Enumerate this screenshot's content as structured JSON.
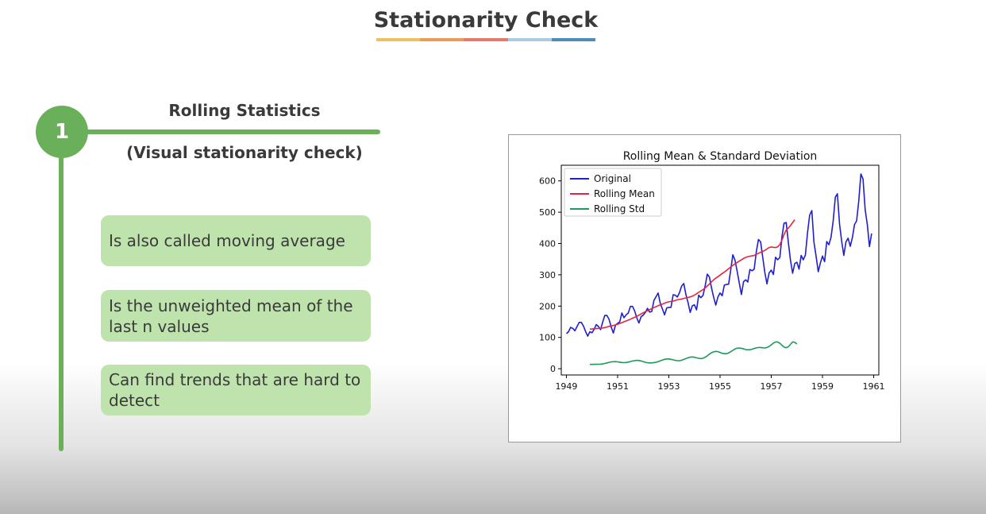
{
  "slide": {
    "title": "Stationarity Check",
    "title_bar_colors": [
      "#f0c060",
      "#ec9a58",
      "#e67a6c",
      "#a8cde0",
      "#4a8cbc"
    ]
  },
  "step": {
    "number": "1",
    "heading": "Rolling Statistics",
    "subheading": "(Visual stationarity check)",
    "accent_color": "#6ab05a"
  },
  "cards": [
    "Is also called moving average",
    "Is the unweighted mean of the last n values",
    "Can find trends that are hard to detect"
  ],
  "chart_data": {
    "type": "line",
    "title": "Rolling Mean & Standard Deviation",
    "xlim": [
      1948.8,
      1961.2
    ],
    "ylim": [
      -20,
      650
    ],
    "xticks": [
      1949,
      1951,
      1953,
      1955,
      1957,
      1959,
      1961
    ],
    "yticks": [
      0,
      100,
      200,
      300,
      400,
      500,
      600
    ],
    "legend_position": "top-left",
    "grid": false,
    "x_start": 1949,
    "x_step": 0.0833333,
    "series": [
      {
        "name": "Original",
        "color": "#1f1fcf",
        "values": [
          112,
          118,
          132,
          129,
          121,
          135,
          148,
          148,
          136,
          119,
          104,
          118,
          115,
          126,
          141,
          135,
          125,
          149,
          170,
          170,
          158,
          133,
          114,
          140,
          145,
          150,
          178,
          163,
          172,
          178,
          199,
          199,
          184,
          162,
          146,
          166,
          171,
          180,
          193,
          181,
          183,
          218,
          230,
          242,
          209,
          191,
          172,
          194,
          196,
          196,
          236,
          235,
          229,
          243,
          264,
          272,
          237,
          211,
          180,
          201,
          204,
          188,
          235,
          227,
          234,
          264,
          302,
          293,
          259,
          229,
          203,
          229,
          242,
          233,
          267,
          269,
          270,
          315,
          364,
          347,
          312,
          274,
          237,
          278,
          284,
          277,
          317,
          313,
          318,
          374,
          413,
          405,
          355,
          306,
          271,
          306,
          315,
          301,
          356,
          348,
          355,
          422,
          465,
          467,
          404,
          347,
          305,
          336,
          340,
          318,
          362,
          348,
          363,
          435,
          491,
          505,
          404,
          359,
          310,
          337,
          360,
          342,
          406,
          396,
          420,
          472,
          548,
          559,
          463,
          407,
          362,
          405,
          417,
          391,
          419,
          461,
          472,
          535,
          622,
          606,
          508,
          461,
          390,
          432
        ]
      },
      {
        "name": "Rolling Mean",
        "color": "#e8233c",
        "x_start": 1949.9167,
        "values": [
          126.7,
          126.9,
          127.6,
          128.3,
          128.8,
          129.2,
          130.0,
          131.4,
          133.3,
          135.2,
          136.8,
          138.2,
          140.0,
          142.2,
          144.8,
          147.2,
          150.0,
          152.5,
          155.2,
          158.1,
          161.5,
          164.5,
          167.3,
          171.0,
          175.0,
          178.7,
          182.3,
          185.3,
          188.9,
          192.1,
          195.1,
          198.3,
          201.4,
          204.0,
          206.3,
          209.4,
          212.0,
          213.8,
          215.0,
          216.1,
          217.9,
          220.0,
          221.4,
          222.7,
          224.6,
          226.3,
          227.6,
          229.5,
          231.9,
          235.1,
          239.3,
          244.0,
          248.2,
          252.8,
          257.9,
          264.2,
          270.8,
          277.5,
          283.9,
          289.3,
          293.9,
          299.0,
          304.2,
          308.6,
          313.9,
          319.3,
          324.9,
          330.3,
          334.9,
          339.4,
          343.8,
          347.8,
          352.2,
          355.7,
          357.9,
          359.4,
          360.6,
          361.7,
          365.5,
          368.8,
          371.8,
          374.8,
          378.0,
          382.4,
          387.0,
          388.8,
          387.8,
          387.0,
          389.3,
          396.7,
          411.0,
          428.8,
          442.7,
          449.2,
          457.4,
          467.0,
          476.0
        ]
      },
      {
        "name": "Rolling Std",
        "color": "#1e9a58",
        "x_start": 1949.9167,
        "values": [
          13.7,
          13.7,
          13.9,
          14.1,
          14.3,
          14.5,
          15.2,
          16.8,
          18.5,
          20.3,
          21.8,
          22.4,
          22.6,
          21.9,
          20.8,
          19.8,
          19.4,
          19.9,
          21.1,
          22.8,
          24.6,
          26.0,
          26.7,
          26.3,
          24.8,
          22.6,
          20.5,
          19.1,
          18.5,
          18.7,
          19.5,
          20.7,
          22.7,
          25.1,
          27.8,
          30.0,
          31.3,
          31.2,
          30.1,
          28.4,
          26.6,
          25.6,
          25.7,
          27.3,
          29.7,
          32.4,
          35.0,
          36.9,
          37.5,
          36.6,
          34.9,
          33.2,
          32.3,
          33.3,
          36.6,
          41.2,
          46.4,
          51.0,
          54.2,
          55.5,
          54.5,
          52.0,
          49.4,
          47.9,
          48.1,
          50.4,
          54.3,
          58.8,
          62.9,
          65.6,
          66.4,
          65.3,
          63.2,
          61.2,
          60.4,
          60.8,
          62.4,
          64.6,
          66.6,
          67.7,
          67.7,
          66.9,
          66.4,
          67.5,
          71.0,
          76.3,
          81.9,
          85.6,
          85.4,
          81.2,
          74.8,
          69.2,
          67.0,
          70.2,
          77.7,
          85.6,
          84.2,
          79.0
        ]
      }
    ]
  }
}
